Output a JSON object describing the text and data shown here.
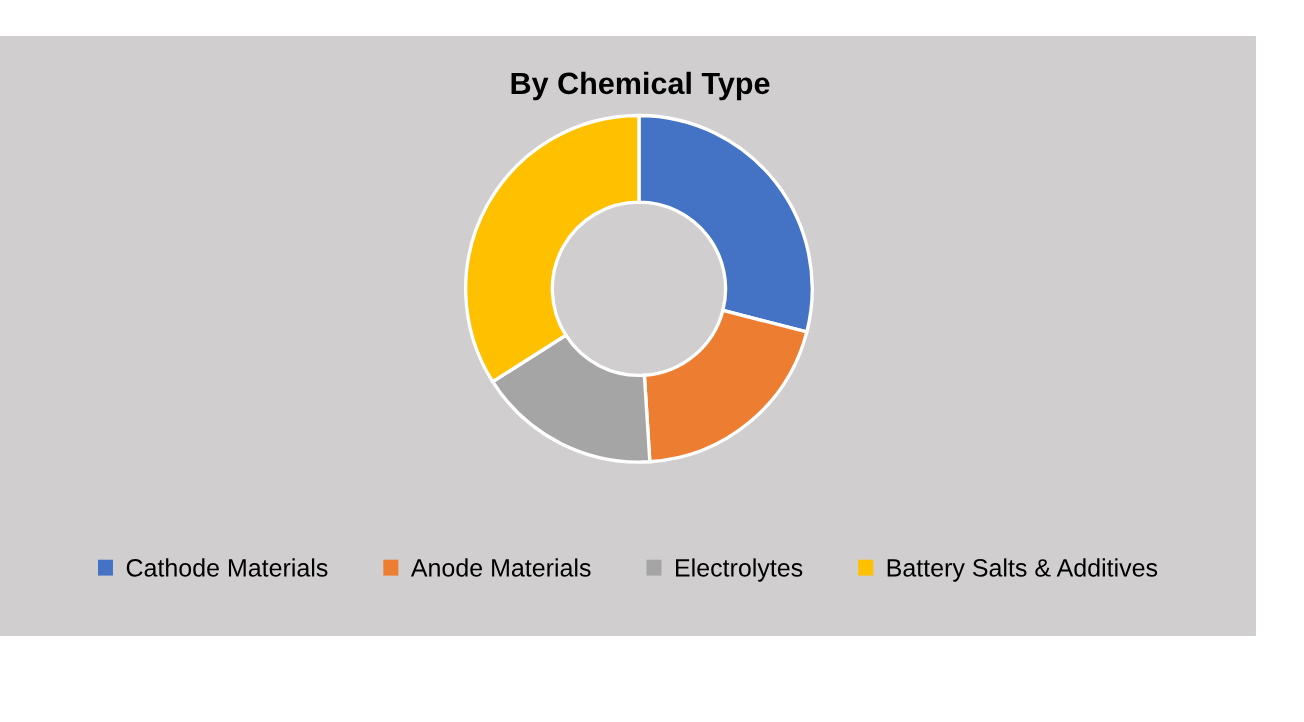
{
  "chart_data": {
    "type": "donut",
    "title": "By Chemical Type",
    "categories": [
      "Cathode Materials",
      "Anode Materials",
      "Electrolytes",
      "Battery Salts & Additives"
    ],
    "values": [
      29,
      20,
      17,
      34
    ],
    "colors": [
      "#4472c4",
      "#ed7d31",
      "#a5a5a5",
      "#ffc000"
    ],
    "legend": "bottom"
  }
}
